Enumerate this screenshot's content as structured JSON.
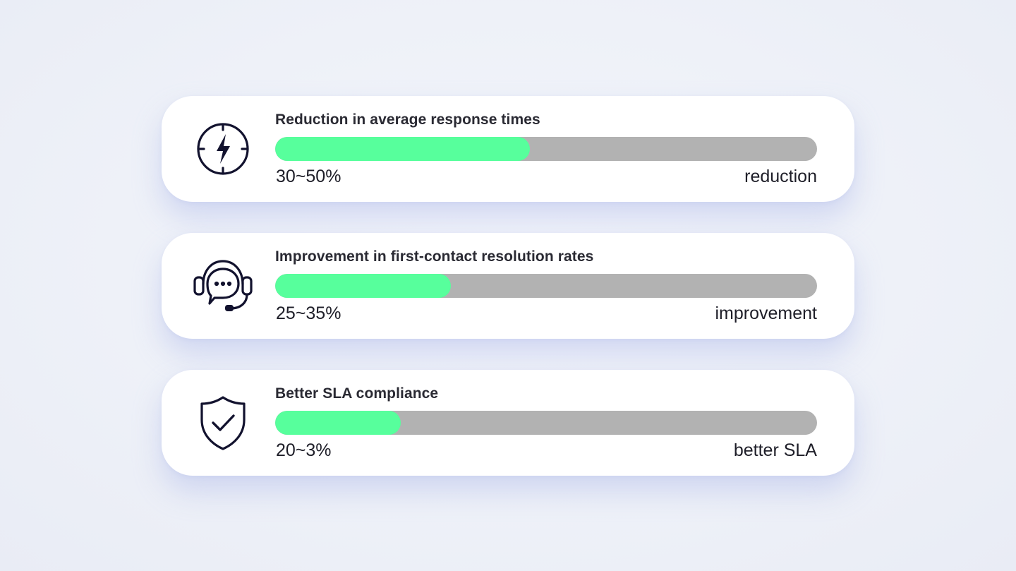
{
  "metrics": [
    {
      "icon": "lightning-bolt-icon",
      "title": "Reduction in average response times",
      "progress": 0.47,
      "value": "30~50%",
      "unit": "reduction"
    },
    {
      "icon": "headset-chat-icon",
      "title": "Improvement in first-contact resolution rates",
      "progress": 0.324,
      "value": "25~35%",
      "unit": "improvement"
    },
    {
      "icon": "shield-check-icon",
      "title": "Better SLA compliance",
      "progress": 0.232,
      "value": "20~3%",
      "unit": "better SLA"
    }
  ],
  "colors": {
    "fill": "#57ff9c",
    "track": "#b2b2b2",
    "icon_stroke": "#12122e"
  }
}
